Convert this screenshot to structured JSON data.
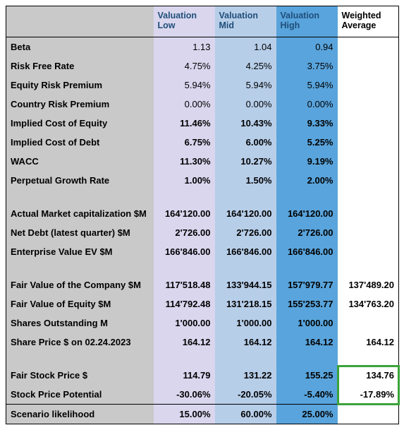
{
  "headers": {
    "low": "Valuation Low",
    "mid": "Valuation Mid",
    "high": "Valuation High",
    "wavg": "Weighted Average"
  },
  "rows": {
    "beta": {
      "label": "Beta",
      "low": "1.13",
      "mid": "1.04",
      "high": "0.94",
      "wavg": ""
    },
    "rfr": {
      "label": "Risk Free Rate",
      "low": "4.75%",
      "mid": "4.25%",
      "high": "3.75%",
      "wavg": ""
    },
    "erp": {
      "label": "Equity Risk Premium",
      "low": "5.94%",
      "mid": "5.94%",
      "high": "5.94%",
      "wavg": ""
    },
    "crp": {
      "label": "Country Risk Premium",
      "low": "0.00%",
      "mid": "0.00%",
      "high": "0.00%",
      "wavg": ""
    },
    "icoe": {
      "label": "Implied Cost of Equity",
      "low": "11.46%",
      "mid": "10.43%",
      "high": "9.33%",
      "wavg": ""
    },
    "icod": {
      "label": "Implied Cost of Debt",
      "low": "6.75%",
      "mid": "6.00%",
      "high": "5.25%",
      "wavg": ""
    },
    "wacc": {
      "label": "WACC",
      "low": "11.30%",
      "mid": "10.27%",
      "high": "9.19%",
      "wavg": ""
    },
    "pgr": {
      "label": "Perpetual Growth Rate",
      "low": "1.00%",
      "mid": "1.50%",
      "high": "2.00%",
      "wavg": ""
    },
    "mcap": {
      "label": "Actual Market capitalization $M",
      "low": "164'120.00",
      "mid": "164'120.00",
      "high": "164'120.00",
      "wavg": ""
    },
    "ndebt": {
      "label": "Net Debt (latest quarter) $M",
      "low": "2'726.00",
      "mid": "2'726.00",
      "high": "2'726.00",
      "wavg": ""
    },
    "ev": {
      "label": "Enterprise Value EV $M",
      "low": "166'846.00",
      "mid": "166'846.00",
      "high": "166'846.00",
      "wavg": ""
    },
    "fvco": {
      "label": "Fair Value of the Company $M",
      "low": "117'518.48",
      "mid": "133'944.15",
      "high": "157'979.77",
      "wavg": "137'489.20"
    },
    "fveq": {
      "label": "Fair Value of Equity $M",
      "low": "114'792.48",
      "mid": "131'218.15",
      "high": "155'253.77",
      "wavg": "134'763.20"
    },
    "shares": {
      "label": "Shares Outstanding M",
      "low": "1'000.00",
      "mid": "1'000.00",
      "high": "1'000.00",
      "wavg": ""
    },
    "price": {
      "label": "Share Price $ on 02.24.2023",
      "low": "164.12",
      "mid": "164.12",
      "high": "164.12",
      "wavg": "164.12"
    },
    "fsp": {
      "label": "Fair Stock Price $",
      "low": "114.79",
      "mid": "131.22",
      "high": "155.25",
      "wavg": "134.76"
    },
    "spp": {
      "label": "Stock Price Potential",
      "low": "-30.06%",
      "mid": "-20.05%",
      "high": "-5.40%",
      "wavg": "-17.89%"
    },
    "scen": {
      "label": "Scenario likelihood",
      "low": "15.00%",
      "mid": "60.00%",
      "high": "25.00%",
      "wavg": ""
    }
  },
  "style": {
    "colors": {
      "label_bg": "#c9c9c9",
      "low_bg": "#d9d6ee",
      "mid_bg": "#b7cee9",
      "high_bg": "#59a4dc",
      "wavg_bg": "#ffffff",
      "header_text": "#1f4e79",
      "border": "#000000",
      "highlight_border": "#3ba23b"
    },
    "font_size_pt": 10,
    "highlight_box": {
      "top_row": "fsp",
      "bottom_row": "spp",
      "col": "wavg"
    }
  }
}
